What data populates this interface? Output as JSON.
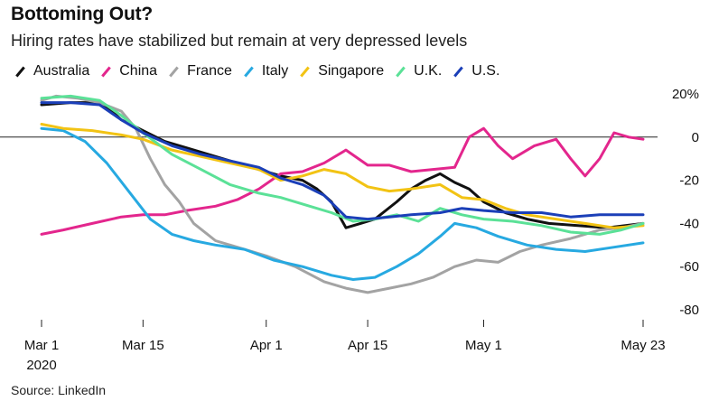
{
  "title": "Bottoming Out?",
  "subtitle": "Hiring rates have stabilized but remain at very depressed levels",
  "source": "Source: LinkedIn",
  "chart_data": {
    "type": "line",
    "x_start": "2020-03-01",
    "x_end": "2020-05-23",
    "x_ticks": [
      {
        "date": "2020-03-01",
        "label": "Mar 1",
        "sublabel": "2020"
      },
      {
        "date": "2020-03-15",
        "label": "Mar 15"
      },
      {
        "date": "2020-04-01",
        "label": "Apr 1"
      },
      {
        "date": "2020-04-15",
        "label": "Apr 15"
      },
      {
        "date": "2020-05-01",
        "label": "May 1"
      },
      {
        "date": "2020-05-23",
        "label": "May 23"
      }
    ],
    "ylim": [
      -80,
      20
    ],
    "y_ticks": [
      {
        "value": 20,
        "label": "20%"
      },
      {
        "value": 0,
        "label": "0"
      },
      {
        "value": -20,
        "label": "-20"
      },
      {
        "value": -40,
        "label": "-40"
      },
      {
        "value": -60,
        "label": "-60"
      },
      {
        "value": -80,
        "label": "-80"
      }
    ],
    "zero_line": true,
    "grid": false,
    "legend_position": "top-left",
    "series": [
      {
        "name": "Australia",
        "color": "#111111",
        "points": [
          [
            "2020-03-01",
            15
          ],
          [
            "2020-03-05",
            16
          ],
          [
            "2020-03-08",
            16
          ],
          [
            "2020-03-10",
            14
          ],
          [
            "2020-03-12",
            8
          ],
          [
            "2020-03-15",
            3
          ],
          [
            "2020-03-18",
            -2
          ],
          [
            "2020-03-22",
            -6
          ],
          [
            "2020-03-26",
            -10
          ],
          [
            "2020-03-30",
            -14
          ],
          [
            "2020-04-03",
            -18
          ],
          [
            "2020-04-06",
            -20
          ],
          [
            "2020-04-08",
            -24
          ],
          [
            "2020-04-10",
            -30
          ],
          [
            "2020-04-11",
            -36
          ],
          [
            "2020-04-12",
            -42
          ],
          [
            "2020-04-14",
            -40
          ],
          [
            "2020-04-16",
            -38
          ],
          [
            "2020-04-19",
            -30
          ],
          [
            "2020-04-21",
            -24
          ],
          [
            "2020-04-23",
            -20
          ],
          [
            "2020-04-25",
            -17
          ],
          [
            "2020-04-27",
            -21
          ],
          [
            "2020-04-29",
            -24
          ],
          [
            "2020-05-01",
            -30
          ],
          [
            "2020-05-04",
            -35
          ],
          [
            "2020-05-07",
            -38
          ],
          [
            "2020-05-10",
            -40
          ],
          [
            "2020-05-14",
            -41
          ],
          [
            "2020-05-18",
            -42
          ],
          [
            "2020-05-23",
            -40
          ]
        ]
      },
      {
        "name": "China",
        "color": "#e3268d",
        "points": [
          [
            "2020-03-01",
            -45
          ],
          [
            "2020-03-04",
            -43
          ],
          [
            "2020-03-08",
            -40
          ],
          [
            "2020-03-12",
            -37
          ],
          [
            "2020-03-15",
            -36
          ],
          [
            "2020-03-18",
            -36
          ],
          [
            "2020-03-21",
            -34
          ],
          [
            "2020-03-25",
            -32
          ],
          [
            "2020-03-28",
            -29
          ],
          [
            "2020-03-31",
            -24
          ],
          [
            "2020-04-03",
            -17
          ],
          [
            "2020-04-06",
            -16
          ],
          [
            "2020-04-09",
            -12
          ],
          [
            "2020-04-12",
            -6
          ],
          [
            "2020-04-15",
            -13
          ],
          [
            "2020-04-18",
            -13
          ],
          [
            "2020-04-21",
            -16
          ],
          [
            "2020-04-24",
            -15
          ],
          [
            "2020-04-27",
            -14
          ],
          [
            "2020-04-29",
            0
          ],
          [
            "2020-05-01",
            4
          ],
          [
            "2020-05-03",
            -4
          ],
          [
            "2020-05-05",
            -10
          ],
          [
            "2020-05-08",
            -4
          ],
          [
            "2020-05-11",
            -1
          ],
          [
            "2020-05-13",
            -10
          ],
          [
            "2020-05-15",
            -18
          ],
          [
            "2020-05-17",
            -10
          ],
          [
            "2020-05-19",
            2
          ],
          [
            "2020-05-21",
            0
          ],
          [
            "2020-05-23",
            -1
          ]
        ]
      },
      {
        "name": "France",
        "color": "#a3a3a3",
        "points": [
          [
            "2020-03-01",
            17
          ],
          [
            "2020-03-03",
            19
          ],
          [
            "2020-03-06",
            18
          ],
          [
            "2020-03-09",
            16
          ],
          [
            "2020-03-12",
            12
          ],
          [
            "2020-03-14",
            4
          ],
          [
            "2020-03-16",
            -10
          ],
          [
            "2020-03-18",
            -22
          ],
          [
            "2020-03-20",
            -30
          ],
          [
            "2020-03-22",
            -40
          ],
          [
            "2020-03-25",
            -48
          ],
          [
            "2020-03-29",
            -52
          ],
          [
            "2020-04-01",
            -55
          ],
          [
            "2020-04-05",
            -60
          ],
          [
            "2020-04-09",
            -67
          ],
          [
            "2020-04-12",
            -70
          ],
          [
            "2020-04-15",
            -72
          ],
          [
            "2020-04-18",
            -70
          ],
          [
            "2020-04-21",
            -68
          ],
          [
            "2020-04-24",
            -65
          ],
          [
            "2020-04-27",
            -60
          ],
          [
            "2020-04-30",
            -57
          ],
          [
            "2020-05-03",
            -58
          ],
          [
            "2020-05-06",
            -53
          ],
          [
            "2020-05-09",
            -50
          ],
          [
            "2020-05-13",
            -47
          ],
          [
            "2020-05-17",
            -43
          ],
          [
            "2020-05-20",
            -42
          ],
          [
            "2020-05-23",
            -40
          ]
        ]
      },
      {
        "name": "Italy",
        "color": "#27a9e1",
        "points": [
          [
            "2020-03-01",
            4
          ],
          [
            "2020-03-04",
            3
          ],
          [
            "2020-03-07",
            -2
          ],
          [
            "2020-03-10",
            -12
          ],
          [
            "2020-03-13",
            -25
          ],
          [
            "2020-03-16",
            -38
          ],
          [
            "2020-03-19",
            -45
          ],
          [
            "2020-03-22",
            -48
          ],
          [
            "2020-03-25",
            -50
          ],
          [
            "2020-03-29",
            -52
          ],
          [
            "2020-04-02",
            -57
          ],
          [
            "2020-04-06",
            -60
          ],
          [
            "2020-04-10",
            -64
          ],
          [
            "2020-04-13",
            -66
          ],
          [
            "2020-04-16",
            -65
          ],
          [
            "2020-04-19",
            -60
          ],
          [
            "2020-04-22",
            -54
          ],
          [
            "2020-04-25",
            -46
          ],
          [
            "2020-04-27",
            -40
          ],
          [
            "2020-04-30",
            -42
          ],
          [
            "2020-05-03",
            -46
          ],
          [
            "2020-05-07",
            -50
          ],
          [
            "2020-05-11",
            -52
          ],
          [
            "2020-05-15",
            -53
          ],
          [
            "2020-05-19",
            -51
          ],
          [
            "2020-05-23",
            -49
          ]
        ]
      },
      {
        "name": "Singapore",
        "color": "#f2c314",
        "points": [
          [
            "2020-03-01",
            6
          ],
          [
            "2020-03-04",
            4
          ],
          [
            "2020-03-08",
            3
          ],
          [
            "2020-03-12",
            1
          ],
          [
            "2020-03-15",
            -1
          ],
          [
            "2020-03-19",
            -6
          ],
          [
            "2020-03-23",
            -9
          ],
          [
            "2020-03-27",
            -12
          ],
          [
            "2020-03-31",
            -15
          ],
          [
            "2020-04-03",
            -20
          ],
          [
            "2020-04-06",
            -18
          ],
          [
            "2020-04-09",
            -15
          ],
          [
            "2020-04-12",
            -17
          ],
          [
            "2020-04-15",
            -23
          ],
          [
            "2020-04-18",
            -25
          ],
          [
            "2020-04-21",
            -24
          ],
          [
            "2020-04-25",
            -22
          ],
          [
            "2020-04-28",
            -28
          ],
          [
            "2020-05-01",
            -29
          ],
          [
            "2020-05-04",
            -33
          ],
          [
            "2020-05-07",
            -36
          ],
          [
            "2020-05-11",
            -38
          ],
          [
            "2020-05-15",
            -40
          ],
          [
            "2020-05-19",
            -42
          ],
          [
            "2020-05-23",
            -41
          ]
        ]
      },
      {
        "name": "U.K.",
        "color": "#5be197",
        "points": [
          [
            "2020-03-01",
            18
          ],
          [
            "2020-03-05",
            19
          ],
          [
            "2020-03-09",
            17
          ],
          [
            "2020-03-12",
            10
          ],
          [
            "2020-03-15",
            2
          ],
          [
            "2020-03-19",
            -8
          ],
          [
            "2020-03-23",
            -15
          ],
          [
            "2020-03-27",
            -22
          ],
          [
            "2020-03-31",
            -26
          ],
          [
            "2020-04-03",
            -28
          ],
          [
            "2020-04-07",
            -32
          ],
          [
            "2020-04-10",
            -35
          ],
          [
            "2020-04-13",
            -39
          ],
          [
            "2020-04-16",
            -38
          ],
          [
            "2020-04-19",
            -36
          ],
          [
            "2020-04-22",
            -39
          ],
          [
            "2020-04-25",
            -33
          ],
          [
            "2020-04-28",
            -36
          ],
          [
            "2020-05-01",
            -38
          ],
          [
            "2020-05-05",
            -39
          ],
          [
            "2020-05-09",
            -41
          ],
          [
            "2020-05-13",
            -44
          ],
          [
            "2020-05-17",
            -45
          ],
          [
            "2020-05-20",
            -43
          ],
          [
            "2020-05-23",
            -40
          ]
        ]
      },
      {
        "name": "U.S.",
        "color": "#1b3fb8",
        "points": [
          [
            "2020-03-01",
            16
          ],
          [
            "2020-03-05",
            16
          ],
          [
            "2020-03-09",
            15
          ],
          [
            "2020-03-12",
            8
          ],
          [
            "2020-03-15",
            2
          ],
          [
            "2020-03-19",
            -4
          ],
          [
            "2020-03-23",
            -8
          ],
          [
            "2020-03-27",
            -11
          ],
          [
            "2020-03-31",
            -14
          ],
          [
            "2020-04-03",
            -19
          ],
          [
            "2020-04-06",
            -22
          ],
          [
            "2020-04-09",
            -27
          ],
          [
            "2020-04-12",
            -37
          ],
          [
            "2020-04-15",
            -38
          ],
          [
            "2020-04-18",
            -37
          ],
          [
            "2020-04-21",
            -36
          ],
          [
            "2020-04-25",
            -35
          ],
          [
            "2020-04-28",
            -33
          ],
          [
            "2020-05-01",
            -34
          ],
          [
            "2020-05-05",
            -35
          ],
          [
            "2020-05-09",
            -35
          ],
          [
            "2020-05-13",
            -37
          ],
          [
            "2020-05-17",
            -36
          ],
          [
            "2020-05-20",
            -36
          ],
          [
            "2020-05-23",
            -36
          ]
        ]
      }
    ],
    "annotations": []
  }
}
